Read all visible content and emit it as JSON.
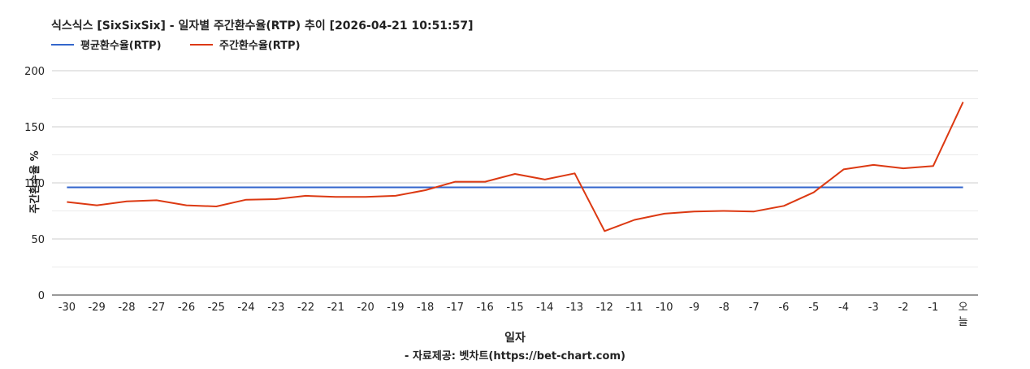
{
  "chart_data": {
    "type": "line",
    "title": "식스식스 [SixSixSix] - 일자별 주간환수율(RTP) 추이 [2026-04-21 10:51:57]",
    "xlabel": "일자",
    "ylabel": "주간환수율 %",
    "footer": "- 자료제공: 벳차트(https://bet-chart.com)",
    "categories": [
      "-30",
      "-29",
      "-28",
      "-27",
      "-26",
      "-25",
      "-24",
      "-23",
      "-22",
      "-21",
      "-20",
      "-19",
      "-18",
      "-17",
      "-16",
      "-15",
      "-14",
      "-13",
      "-12",
      "-11",
      "-10",
      "-9",
      "-8",
      "-7",
      "-6",
      "-5",
      "-4",
      "-3",
      "-2",
      "-1",
      "오늘"
    ],
    "yticks": [
      0,
      50,
      100,
      150,
      200
    ],
    "ylim": [
      0,
      200
    ],
    "grid": true,
    "legend_position": "top-left",
    "series": [
      {
        "name": "평균환수율(RTP)",
        "color": "#3366cc",
        "values": [
          96,
          96,
          96,
          96,
          96,
          96,
          96,
          96,
          96,
          96,
          96,
          96,
          96,
          96,
          96,
          96,
          96,
          96,
          96,
          96,
          96,
          96,
          96,
          96,
          96,
          96,
          96,
          96,
          96,
          96,
          96
        ]
      },
      {
        "name": "주간환수율(RTP)",
        "color": "#dc3912",
        "values": [
          83,
          80,
          83.5,
          84.5,
          80,
          79,
          85,
          85.5,
          88.5,
          87.5,
          87.5,
          88.5,
          93.5,
          101,
          101,
          108,
          103,
          108.5,
          57,
          67,
          72.5,
          74.5,
          75,
          74.5,
          79.5,
          91.5,
          112,
          116,
          113,
          115,
          172
        ]
      }
    ]
  }
}
